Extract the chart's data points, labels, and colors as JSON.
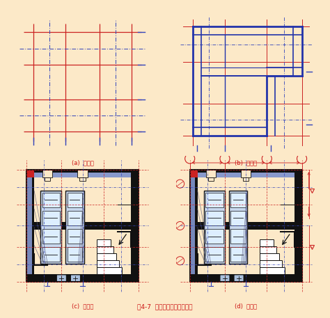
{
  "bg_color": "#fce9c8",
  "title": "图4-7  建筑平面图的绘制步骤",
  "title_color": "#cc1111",
  "title_fontsize": 6.5,
  "labels": [
    "(a)  第一步",
    "(b)  第二步",
    "(c)  第三步",
    "(d)  第四步"
  ],
  "label_color": "#cc1111",
  "label_fontsize": 6,
  "red": "#cc2222",
  "blue": "#3344bb",
  "black": "#111111",
  "wall_black": "#1a1a1a",
  "blue_fill": "#8899cc",
  "red_fill": "#cc2222"
}
